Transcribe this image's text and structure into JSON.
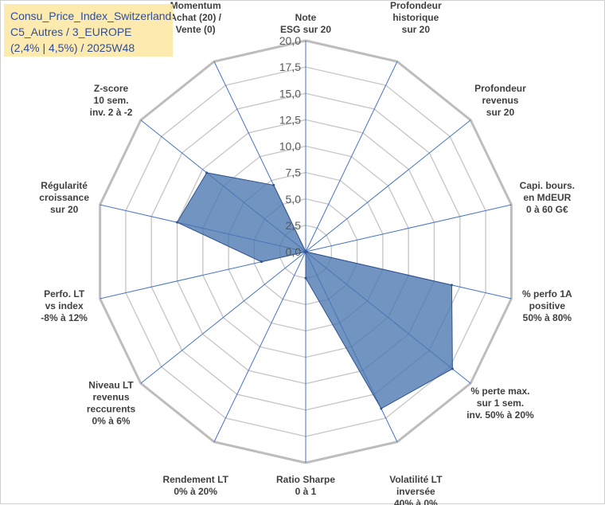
{
  "title_box": {
    "line1": "Consu_Price_Index_Switzerland",
    "line2": "C5_Autres / 3_EUROPE",
    "line3": "(2,4% | 4,5%) / 2025W48"
  },
  "colors": {
    "fill": "#4a76b0",
    "outline": "#2f528f",
    "grid": "#c8c8c8",
    "spokes": "#4472c4",
    "title_bg": "#fde9a9",
    "title_text": "#1f3f8f"
  },
  "chart_data": {
    "type": "radar",
    "title": "",
    "rmin": 0,
    "rmax": 20,
    "step": 2.5,
    "tick_labels": [
      "0,0",
      "2,5",
      "5,0",
      "7,5",
      "10,0",
      "12,5",
      "15,0",
      "17,5",
      "20,0"
    ],
    "axes": [
      [
        "Note",
        "ESG sur 20"
      ],
      [
        "Profondeur",
        "historique",
        "sur 20"
      ],
      [
        "Profondeur",
        "revenus",
        "sur 20"
      ],
      [
        "Capi. bours.",
        "en MdEUR",
        "0 à 60 G€"
      ],
      [
        "% perfo 1A",
        "positive",
        "50% à 80%"
      ],
      [
        "% perte max.",
        "sur 1 sem.",
        "inv. 50% à 20%"
      ],
      [
        "Volatilité LT",
        "inversée",
        "40% à 0%"
      ],
      [
        "Ratio Sharpe",
        "0 à 1"
      ],
      [
        "Rendement LT",
        "0% à 20%"
      ],
      [
        "Niveau LT",
        "revenus",
        "reccurents",
        "0% à 6%"
      ],
      [
        "Perfo. LT",
        "vs index",
        "-8% à 12%"
      ],
      [
        "Régularité",
        "croissance",
        "sur 20"
      ],
      [
        "Z-score",
        "10 sem.",
        "inv. 2 à -2"
      ],
      [
        "Momentum",
        "Achat (20) /",
        "Vente (0)"
      ]
    ],
    "series": [
      {
        "name": "Consu_Price_Index_Switzerland",
        "values": [
          0,
          0,
          0,
          0,
          14.2,
          17.8,
          16.5,
          2.5,
          0,
          0,
          4.3,
          12.5,
          12.0,
          7.0
        ]
      }
    ]
  }
}
